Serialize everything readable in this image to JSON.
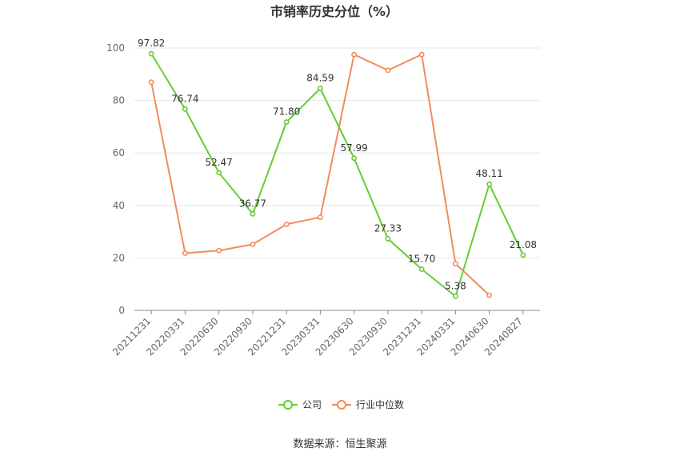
{
  "chart_data": {
    "type": "line",
    "title": "市销率历史分位（%）",
    "categories": [
      "20211231",
      "20220331",
      "20220630",
      "20220930",
      "20221231",
      "20230331",
      "20230630",
      "20230930",
      "20231231",
      "20240331",
      "20240630",
      "20240827"
    ],
    "ylim": [
      0,
      100
    ],
    "yticks": [
      0,
      20,
      40,
      60,
      80,
      100
    ],
    "grid": true,
    "legend_position": "bottom",
    "series": [
      {
        "name": "公司",
        "color": "#66cc33",
        "values": [
          97.82,
          76.74,
          52.47,
          36.77,
          71.8,
          84.59,
          57.99,
          27.33,
          15.7,
          5.38,
          48.11,
          21.08
        ],
        "labels": [
          "97.82",
          "76.74",
          "52.47",
          "36.77",
          "71.80",
          "84.59",
          "57.99",
          "27.33",
          "15.70",
          "5.38",
          "48.11",
          "21.08"
        ]
      },
      {
        "name": "行业中位数",
        "color": "#f28c5c",
        "values": [
          87,
          21.8,
          22.8,
          25.2,
          32.8,
          35.5,
          97.5,
          91.5,
          97.5,
          17.8,
          5.8,
          null
        ]
      }
    ]
  },
  "source": "数据来源：恒生聚源"
}
